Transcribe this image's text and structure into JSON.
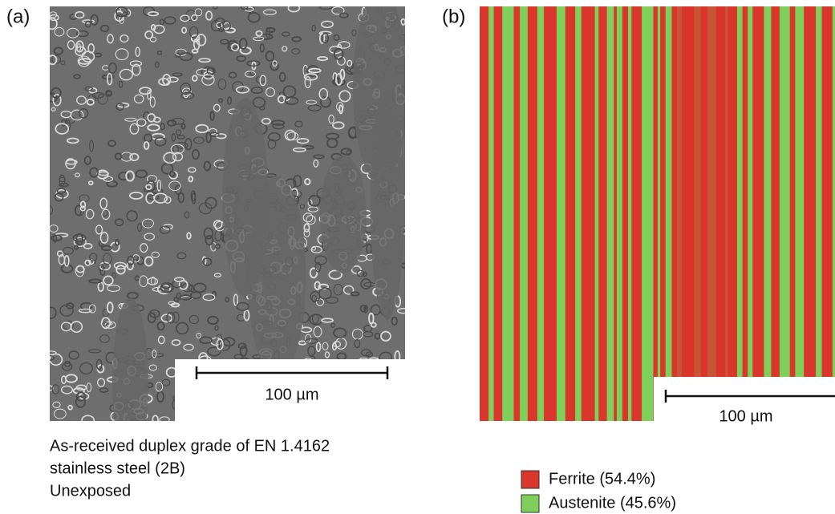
{
  "panels": [
    {
      "label": "(a)",
      "scale_bar": "100 µm",
      "caption": [
        "As-received duplex grade of EN 1.4162",
        "stainless steel (2B)",
        "Unexposed"
      ]
    },
    {
      "label": "(b)",
      "scale_bar": "100 µm",
      "legend": [
        {
          "name": "Ferrite (54.4%)",
          "color": "#d9362c"
        },
        {
          "name": "Austenite (45.6%)",
          "color": "#7fd05a"
        }
      ]
    }
  ]
}
